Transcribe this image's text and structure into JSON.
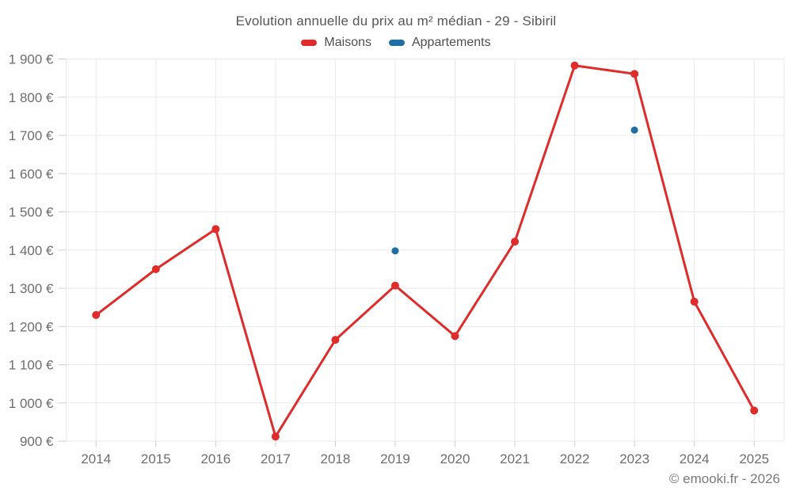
{
  "header": {
    "title": "Evolution annuelle du prix au m² médian - 29 - Sibiril"
  },
  "footer": {
    "credit": "© emooki.fr - 2026"
  },
  "chart_data": {
    "type": "line",
    "title": "Evolution annuelle du prix au m² médian - 29 - Sibiril",
    "categories": [
      "2014",
      "2015",
      "2016",
      "2017",
      "2018",
      "2019",
      "2020",
      "2021",
      "2022",
      "2023",
      "2024",
      "2025"
    ],
    "series": [
      {
        "name": "Maisons",
        "color": "#e02b2b",
        "line": true,
        "marker": "circle",
        "values": [
          1230,
          1350,
          1455,
          912,
          1165,
          1307,
          1175,
          1422,
          1883,
          1861,
          1265,
          980
        ]
      },
      {
        "name": "Appartements",
        "color": "#1c6ea4",
        "line": false,
        "marker": "circle",
        "values": [
          null,
          null,
          null,
          null,
          null,
          1398,
          null,
          null,
          null,
          1714,
          null,
          null
        ]
      }
    ],
    "xlabel": "",
    "ylabel": "",
    "ylim": [
      900,
      1900
    ],
    "ytick_step": 100,
    "ytick_suffix": " €",
    "grid": true,
    "legend_position": "top"
  }
}
